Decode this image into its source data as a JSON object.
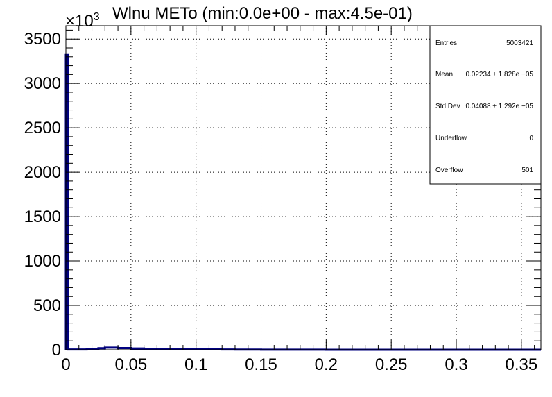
{
  "chart_data": {
    "type": "bar",
    "title": "Wlnu METo (min:0.0e+00 - max:4.5e-01)",
    "y_multiplier": "×10",
    "y_multiplier_exp": "3",
    "xlabel": "",
    "ylabel": "",
    "xlim": [
      0,
      0.365
    ],
    "ylim": [
      0,
      3650
    ],
    "grid": true,
    "x_ticks": [
      {
        "v": 0,
        "label": "0"
      },
      {
        "v": 0.05,
        "label": "0.05"
      },
      {
        "v": 0.1,
        "label": "0.1"
      },
      {
        "v": 0.15,
        "label": "0.15"
      },
      {
        "v": 0.2,
        "label": "0.2"
      },
      {
        "v": 0.25,
        "label": "0.25"
      },
      {
        "v": 0.3,
        "label": "0.3"
      },
      {
        "v": 0.35,
        "label": "0.35"
      }
    ],
    "y_ticks": [
      {
        "v": 0,
        "label": "0"
      },
      {
        "v": 500,
        "label": "500"
      },
      {
        "v": 1000,
        "label": "1000"
      },
      {
        "v": 1500,
        "label": "1500"
      },
      {
        "v": 2000,
        "label": "2000"
      },
      {
        "v": 2500,
        "label": "2500"
      },
      {
        "v": 3000,
        "label": "3000"
      },
      {
        "v": 3500,
        "label": "3500"
      }
    ],
    "line_color": "#000080",
    "bins": [
      {
        "x0": 0.0,
        "x1": 0.0016,
        "y": 3320
      },
      {
        "x0": 0.0016,
        "x1": 0.016,
        "y": 3
      },
      {
        "x0": 0.016,
        "x1": 0.025,
        "y": 10
      },
      {
        "x0": 0.025,
        "x1": 0.03,
        "y": 18
      },
      {
        "x0": 0.03,
        "x1": 0.04,
        "y": 24
      },
      {
        "x0": 0.04,
        "x1": 0.05,
        "y": 20
      },
      {
        "x0": 0.05,
        "x1": 0.06,
        "y": 15
      },
      {
        "x0": 0.06,
        "x1": 0.07,
        "y": 12
      },
      {
        "x0": 0.07,
        "x1": 0.08,
        "y": 9
      },
      {
        "x0": 0.08,
        "x1": 0.1,
        "y": 7
      },
      {
        "x0": 0.1,
        "x1": 0.12,
        "y": 5
      },
      {
        "x0": 0.12,
        "x1": 0.13,
        "y": 3
      },
      {
        "x0": 0.13,
        "x1": 0.15,
        "y": 2
      },
      {
        "x0": 0.15,
        "x1": 0.2,
        "y": 1
      },
      {
        "x0": 0.2,
        "x1": 0.365,
        "y": 0
      }
    ]
  },
  "stats": {
    "rows": [
      {
        "label": "Entries",
        "value": "5003421"
      },
      {
        "label": "Mean",
        "value": "0.02234  ± 1.828e −05"
      },
      {
        "label": "Std Dev",
        "value": "0.04088  ± 1.292e −05"
      },
      {
        "label": "Underflow",
        "value": "0"
      },
      {
        "label": "Overflow",
        "value": "501"
      }
    ]
  }
}
